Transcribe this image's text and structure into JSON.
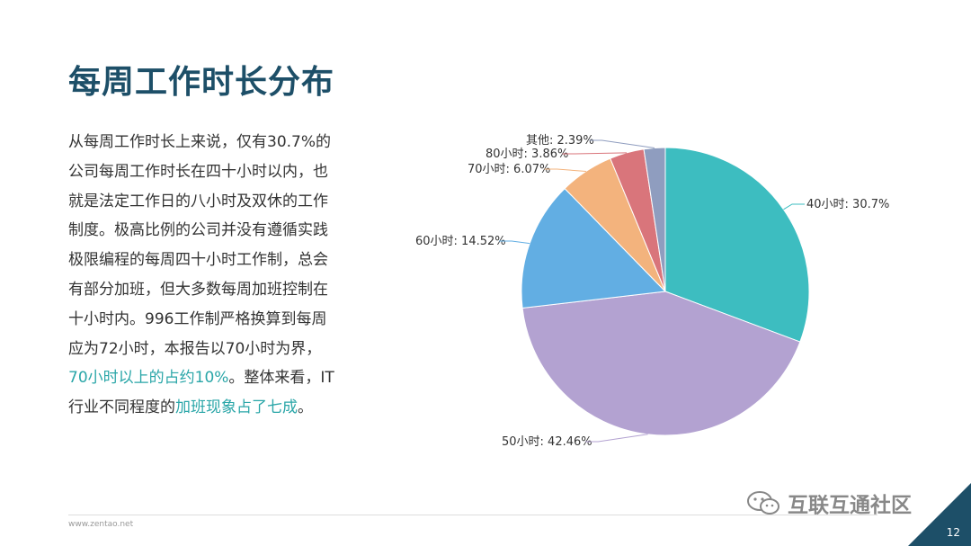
{
  "title": "每周工作时长分布",
  "paragraph": {
    "part1": "从每周工作时长上来说，仅有30.7%的公司每周工作时长在四十小时以内，也就是法定工作日的八小时及双休的工作制度。极高比例的公司并没有遵循实践极限编程的每周四十小时工作制，总会有部分加班，但大多数每周加班控制在十小时内。996工作制严格换算到每周应为72小时，本报告以70小时为界，",
    "highlight1": "70小时以上的占约10%",
    "part2": "。整体来看，IT行业不同程度的",
    "highlight2": "加班现象占了七成",
    "part3": "。"
  },
  "footer": {
    "url": "www.zentao.net",
    "page": "12"
  },
  "watermark": {
    "text": "互联互通社区"
  },
  "colors": {
    "title": "#1d4f68",
    "highlight": "#2aa6a8",
    "corner": "#1d4f68"
  },
  "chart_data": {
    "type": "pie",
    "slices": [
      {
        "name": "40小时",
        "value": 30.7,
        "label": "40小时: 30.7%",
        "color": "#3dbdc0"
      },
      {
        "name": "50小时",
        "value": 42.46,
        "label": "50小时: 42.46%",
        "color": "#b3a2d1"
      },
      {
        "name": "60小时",
        "value": 14.52,
        "label": "60小时: 14.52%",
        "color": "#62aee3"
      },
      {
        "name": "70小时",
        "value": 6.07,
        "label": "70小时: 6.07%",
        "color": "#f3b37d"
      },
      {
        "name": "80小时",
        "value": 3.86,
        "label": "80小时: 3.86%",
        "color": "#d9757b"
      },
      {
        "name": "其他",
        "value": 2.39,
        "label": "其他: 2.39%",
        "color": "#8f9dbf"
      }
    ]
  }
}
